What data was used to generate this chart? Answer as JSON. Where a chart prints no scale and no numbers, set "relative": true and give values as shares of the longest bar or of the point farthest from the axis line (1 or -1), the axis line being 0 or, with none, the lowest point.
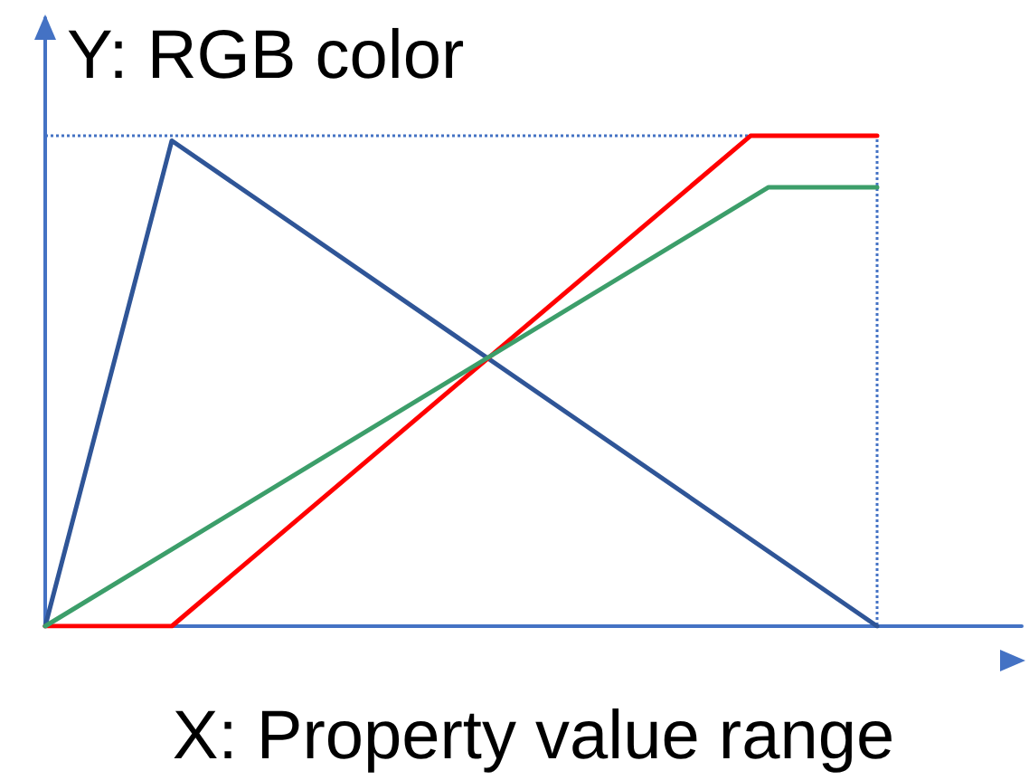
{
  "chart_data": {
    "type": "line",
    "relative": true,
    "xlabel": "X: Property value range",
    "ylabel": "Y: RGB color",
    "tick_labels": false,
    "grid": false,
    "marker": "none",
    "line_style": "solid",
    "categories": [
      null,
      null,
      null,
      null,
      null,
      null,
      null,
      null,
      null,
      null,
      null,
      null,
      null,
      null,
      null,
      null,
      null,
      null,
      null,
      null,
      null,
      null,
      null,
      null,
      null,
      null,
      null,
      null,
      null,
      null,
      null,
      null,
      null,
      null,
      null,
      null,
      null,
      null,
      null,
      null,
      null,
      null,
      null,
      null,
      null,
      null,
      null,
      null,
      null,
      null,
      null,
      null,
      null,
      null,
      null
    ],
    "series": [
      {
        "color": "#2f5597",
        "values": [
          0,
          null,
          null,
          null,
          null,
          null,
          null,
          0.99,
          null,
          null,
          null,
          null,
          null,
          null,
          null,
          null,
          null,
          null,
          null,
          null,
          null,
          null,
          null,
          null,
          null,
          null,
          null,
          null,
          null,
          null,
          null,
          null,
          null,
          null,
          null,
          null,
          null,
          null,
          null,
          null,
          null,
          null,
          null,
          null,
          null,
          null,
          0,
          null,
          null,
          null,
          null,
          null,
          null,
          null,
          null
        ]
      },
      {
        "color": "#ff0000",
        "values": [
          0,
          null,
          null,
          null,
          null,
          null,
          null,
          0,
          null,
          null,
          null,
          null,
          null,
          null,
          null,
          null,
          null,
          null,
          null,
          null,
          null,
          null,
          null,
          null,
          null,
          null,
          null,
          null,
          null,
          null,
          null,
          null,
          null,
          null,
          null,
          null,
          null,
          null,
          null,
          1,
          null,
          null,
          null,
          null,
          null,
          null,
          1,
          null,
          null,
          null,
          null,
          null,
          null,
          null,
          null
        ]
      },
      {
        "color": "#3c9e6a",
        "values": [
          0,
          null,
          null,
          null,
          null,
          null,
          null,
          null,
          null,
          null,
          null,
          null,
          null,
          null,
          null,
          null,
          null,
          null,
          null,
          null,
          null,
          null,
          null,
          null,
          null,
          null,
          null,
          null,
          null,
          null,
          null,
          null,
          null,
          null,
          null,
          null,
          null,
          null,
          null,
          null,
          0.895,
          null,
          null,
          null,
          null,
          null,
          0.895,
          null,
          null,
          null,
          null,
          null,
          null,
          null,
          null
        ]
      }
    ],
    "ref_lines": [
      {
        "axis": "y",
        "value": 1,
        "color": "#4472c4",
        "line_style": "dotted"
      }
    ]
  }
}
